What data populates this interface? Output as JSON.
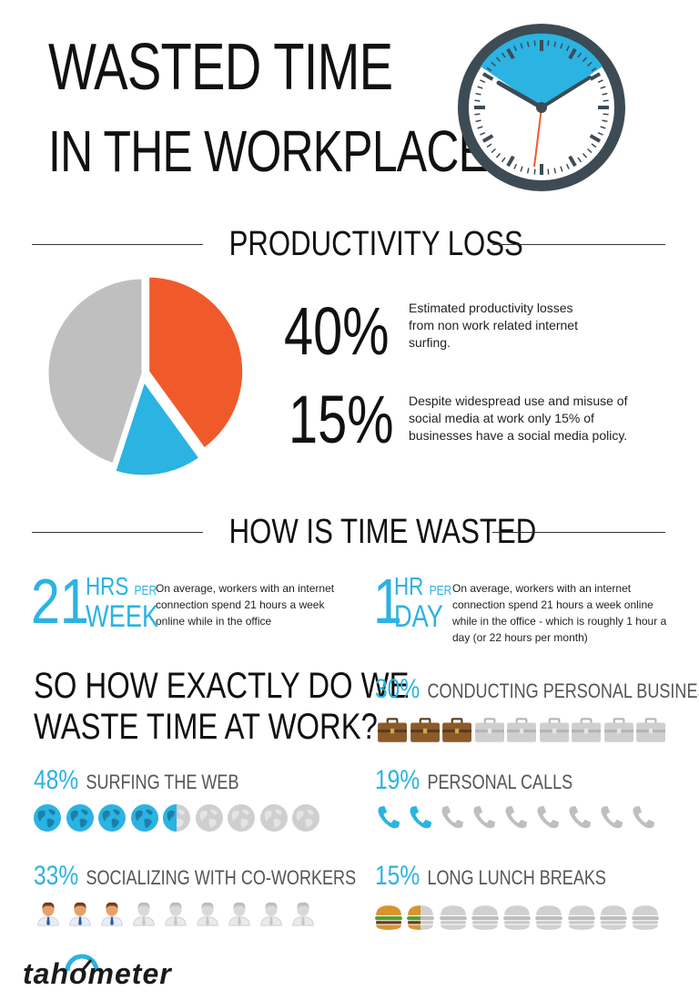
{
  "header": {
    "title_line1": "WASTED TIME",
    "title_line2": "IN THE WORKPLACE"
  },
  "productivity": {
    "heading": "PRODUCTIVITY LOSS",
    "stat1_value": "40%",
    "stat1_desc": "Estimated productivity losses from non work related internet surfing.",
    "stat2_value": "15%",
    "stat2_desc": "Despite widespread use and misuse of social media at work only 15% of businesses have a social media policy.",
    "pie": {
      "orange_pct": 40,
      "blue_pct": 15,
      "gray_pct": 45,
      "colors": {
        "orange": "#f05a2a",
        "blue": "#2bb3e2",
        "gray": "#bfbfbf"
      }
    }
  },
  "how": {
    "heading": "HOW IS TIME WASTED",
    "left_num": "21",
    "left_unit_top": "HRS",
    "left_unit_small": "PER",
    "left_unit_bottom": "WEEK",
    "left_desc": "On average, workers with an internet connection spend 21 hours a week online while in the office",
    "right_num": "1",
    "right_unit_top": "HR",
    "right_unit_small": "PER",
    "right_unit_bottom": "DAY",
    "right_desc": "On average, workers with an internet connection spend 21 hours a week online while in the office - which is roughly 1 hour a day (or 22 hours per month)"
  },
  "exactly": {
    "line1": "SO HOW EXACTLY DO WE",
    "line2": "WASTE TIME AT WORK?"
  },
  "categories": {
    "surfing": {
      "pct": "48%",
      "label": "SURFING THE WEB",
      "filled": 4.5,
      "total": 9,
      "icon": "globe-icon"
    },
    "socializing": {
      "pct": "33%",
      "label": "SOCIALIZING WITH CO-WORKERS",
      "filled": 3,
      "total": 9,
      "icon": "person-icon"
    },
    "business": {
      "pct": "30%",
      "label": "CONDUCTING PERSONAL BUSINESS",
      "filled": 3,
      "total": 9,
      "icon": "briefcase-icon"
    },
    "calls": {
      "pct": "19%",
      "label": "PERSONAL CALLS",
      "filled": 2,
      "total": 9,
      "icon": "phone-icon"
    },
    "lunch": {
      "pct": "15%",
      "label": "LONG LUNCH BREAKS",
      "filled": 1.5,
      "total": 9,
      "icon": "burger-icon"
    }
  },
  "brand": {
    "name": "tahometer",
    "accent": "#2bb3e2"
  }
}
